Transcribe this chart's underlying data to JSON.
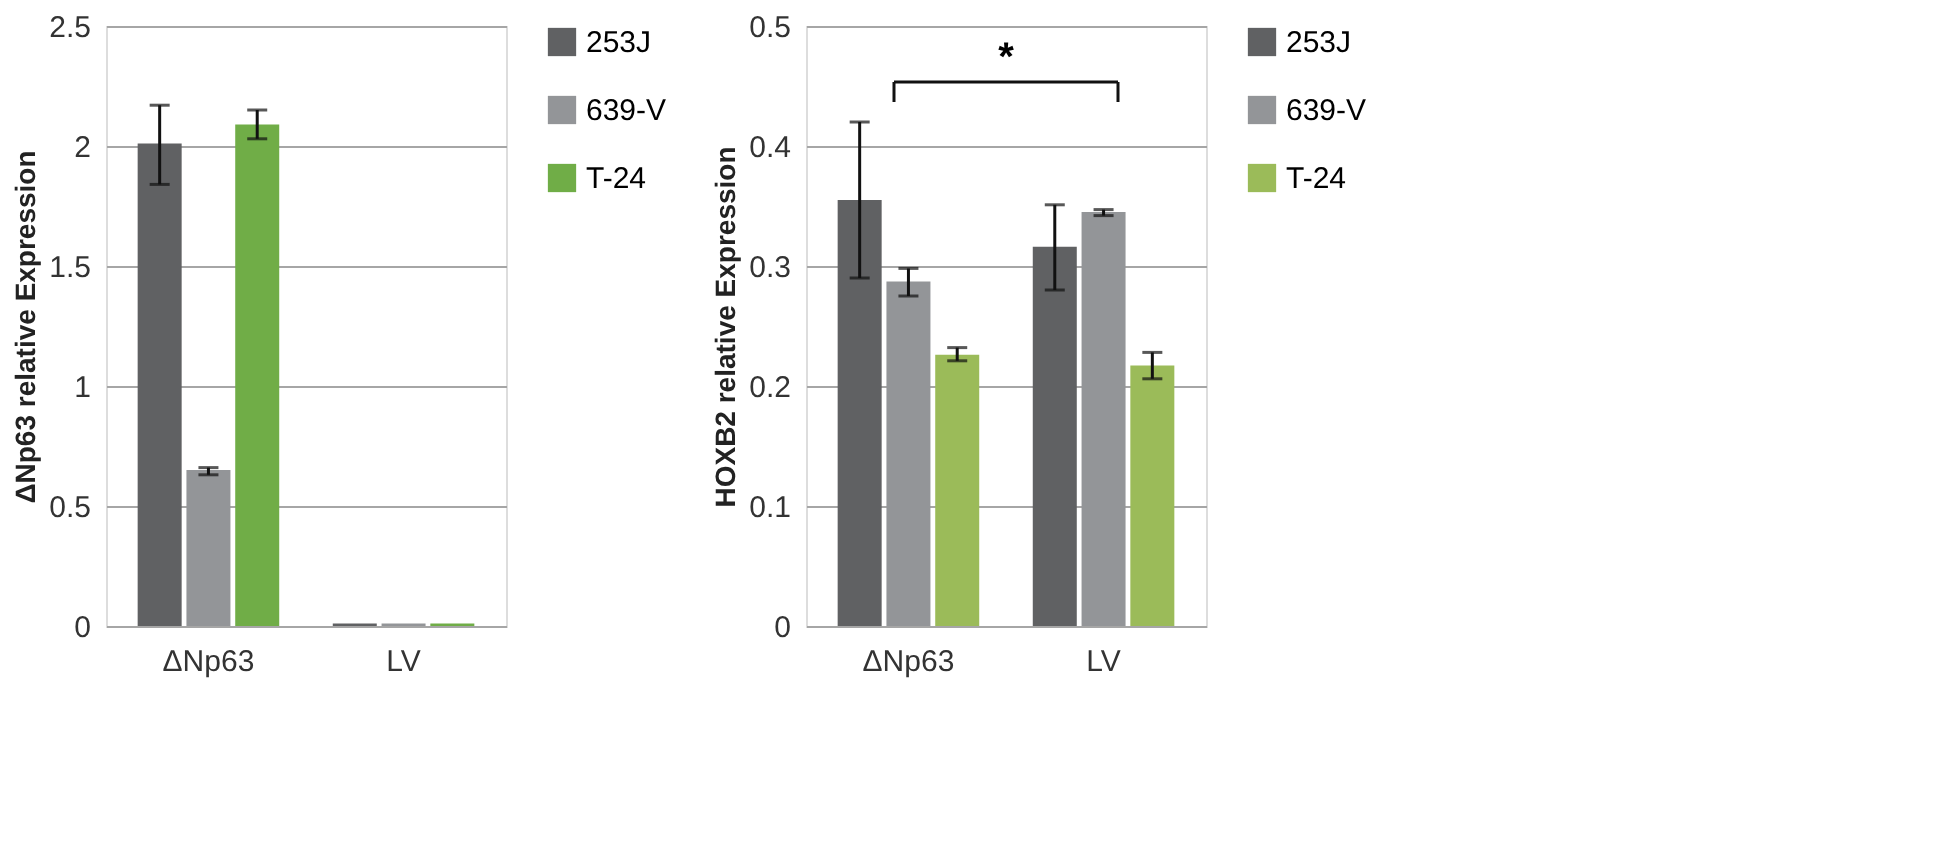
{
  "chart_data": [
    {
      "type": "bar",
      "ylabel": "ΔNp63 relative Expression",
      "categories": [
        "ΔNp63",
        "LV"
      ],
      "ylim": [
        0,
        2.5
      ],
      "yticks": [
        0,
        0.5,
        1,
        1.5,
        2,
        2.5
      ],
      "grid": "y",
      "legend": "right",
      "series": [
        {
          "name": "253J",
          "color": "#606163",
          "values": [
            2.01,
            0.01
          ],
          "errors": [
            [
              1.84,
              2.17
            ],
            null
          ]
        },
        {
          "name": "639-V",
          "color": "#939598",
          "values": [
            0.65,
            0.01
          ],
          "errors": [
            [
              0.63,
              0.66
            ],
            null
          ]
        },
        {
          "name": "T-24",
          "color": "#70ad47",
          "values": [
            2.09,
            0.01
          ],
          "errors": [
            [
              2.03,
              2.15
            ],
            null
          ]
        }
      ]
    },
    {
      "type": "bar",
      "ylabel": "HOXB2 relative Expression",
      "categories": [
        "ΔNp63",
        "LV"
      ],
      "ylim": [
        0,
        0.5
      ],
      "yticks": [
        0,
        0.1,
        0.2,
        0.3,
        0.4,
        0.5
      ],
      "grid": "y",
      "legend": "right",
      "annotations": [
        "*"
      ],
      "series": [
        {
          "name": "253J",
          "color": "#606163",
          "values": [
            0.355,
            0.316
          ],
          "errors": [
            [
              0.29,
              0.42
            ],
            [
              0.28,
              0.351
            ]
          ]
        },
        {
          "name": "639-V",
          "color": "#939598",
          "values": [
            0.287,
            0.345
          ],
          "errors": [
            [
              0.275,
              0.298
            ],
            [
              0.342,
              0.347
            ]
          ]
        },
        {
          "name": "T-24",
          "color": "#9bbb59",
          "values": [
            0.226,
            0.217
          ],
          "errors": [
            [
              0.221,
              0.232
            ],
            [
              0.206,
              0.228
            ]
          ]
        }
      ]
    }
  ]
}
